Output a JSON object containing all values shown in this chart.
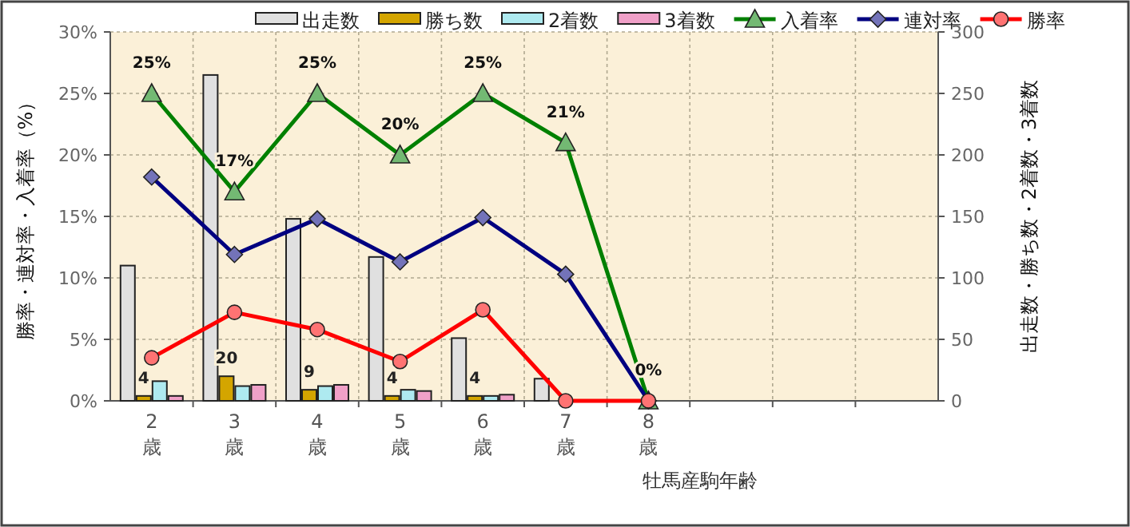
{
  "chart_data": {
    "type": "bar",
    "xlabel": "牡馬産駒年齢",
    "ylabel": "勝率・連対率・入着率（%）",
    "y2label": "出走数・勝ち数・2着数・3着数",
    "categories": [
      "2歳",
      "3歳",
      "4歳",
      "5歳",
      "6歳",
      "7歳",
      "8歳",
      null,
      null,
      null
    ],
    "series": [
      {
        "name": "出走数",
        "axis": "y2",
        "color": "#e0e0e0",
        "values": [
          110,
          265,
          148,
          117,
          51,
          18,
          null,
          null,
          null,
          null
        ]
      },
      {
        "name": "勝ち数",
        "axis": "y2",
        "color": "#d4a500",
        "values": [
          4,
          20,
          9,
          4,
          4,
          0,
          0,
          null,
          null,
          null
        ],
        "value_labels": [
          "4",
          "20",
          "9",
          "4",
          "4",
          null,
          null,
          null,
          null,
          null
        ]
      },
      {
        "name": "2着数",
        "axis": "y2",
        "color": "#aeeaf0",
        "values": [
          16,
          12,
          12,
          9,
          4,
          0,
          0,
          null,
          null,
          null
        ]
      },
      {
        "name": "3着数",
        "axis": "y2",
        "color": "#f0a0c8",
        "values": [
          4,
          13,
          13,
          8,
          5,
          0,
          0,
          null,
          null,
          null
        ]
      },
      {
        "name": "入着率",
        "type": "line",
        "color": "#008000",
        "marker": "triangle",
        "values": [
          25,
          17,
          25,
          20,
          25,
          21,
          0,
          null,
          null,
          null
        ],
        "value_labels": [
          "25%",
          "17%",
          "25%",
          "20%",
          "25%",
          "21%",
          "0%",
          null,
          null,
          null
        ]
      },
      {
        "name": "連対率",
        "type": "line",
        "color": "#000080",
        "marker": "diamond",
        "values": [
          18.2,
          11.9,
          14.8,
          11.3,
          14.9,
          10.3,
          0,
          null,
          null,
          null
        ]
      },
      {
        "name": "勝率",
        "type": "line",
        "color": "#ff0000",
        "marker": "circle",
        "values": [
          3.5,
          7.2,
          5.8,
          3.2,
          7.4,
          0,
          0,
          null,
          null,
          null
        ]
      }
    ],
    "ylim": [
      0,
      30
    ],
    "yticks": [
      {
        "value": 0,
        "label": "0%"
      },
      {
        "value": 5,
        "label": "5%"
      },
      {
        "value": 10,
        "label": "10%"
      },
      {
        "value": 15,
        "label": "15%"
      },
      {
        "value": 20,
        "label": "20%"
      },
      {
        "value": 25,
        "label": "25%"
      },
      {
        "value": 30,
        "label": "30%"
      }
    ],
    "y2lim": [
      0,
      300
    ],
    "y2ticks": [
      0,
      50,
      100,
      150,
      200,
      250,
      300
    ],
    "grid": true,
    "legend": "top"
  }
}
